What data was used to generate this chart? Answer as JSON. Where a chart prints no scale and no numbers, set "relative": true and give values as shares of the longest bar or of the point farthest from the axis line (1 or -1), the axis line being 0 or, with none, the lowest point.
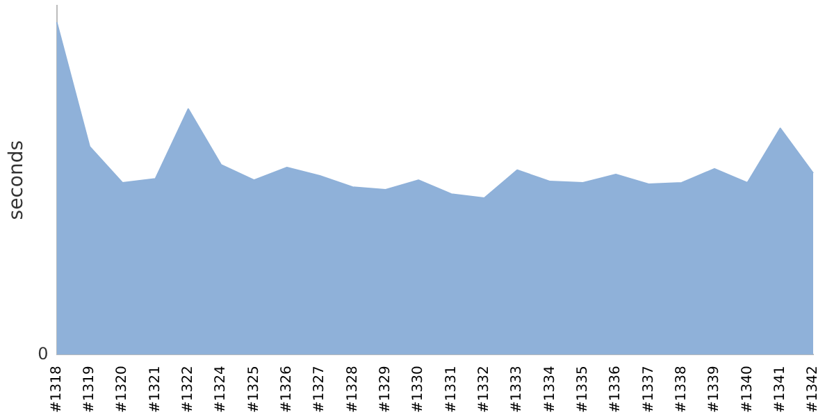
{
  "chart_data": {
    "type": "area",
    "ylabel": "seconds",
    "relative": true,
    "annotations": [
      "0"
    ],
    "grid": false,
    "legend": false,
    "categories": [
      "#1318",
      "#1319",
      "#1320",
      "#1321",
      "#1322",
      "#1324",
      "#1325",
      "#1326",
      "#1327",
      "#1328",
      "#1329",
      "#1330",
      "#1331",
      "#1332",
      "#1333",
      "#1334",
      "#1335",
      "#1336",
      "#1337",
      "#1338",
      "#1339",
      "#1340",
      "#1341",
      "#1342"
    ],
    "series": [
      {
        "color": "#8fb1d9",
        "values": [
          1.0,
          0.626,
          0.517,
          0.529,
          0.739,
          0.571,
          0.525,
          0.563,
          0.538,
          0.504,
          0.496,
          0.525,
          0.483,
          0.471,
          0.555,
          0.521,
          0.517,
          0.542,
          0.513,
          0.517,
          0.559,
          0.517,
          0.681,
          0.546
        ]
      }
    ]
  }
}
